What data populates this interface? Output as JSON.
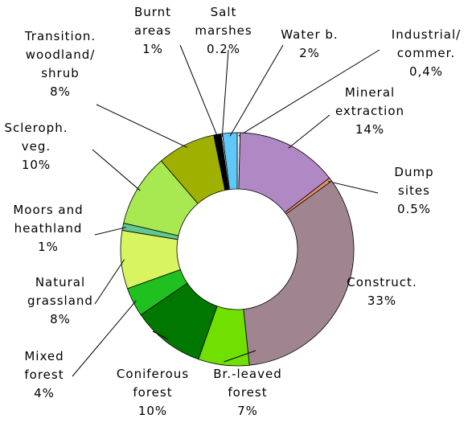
{
  "chart_data": {
    "type": "donut",
    "categories": [
      "Industrial/\ncommer.",
      "Mineral\nextraction",
      "Dump\nsites",
      "Construct.",
      "Br.-leaved\nforest",
      "Coniferous\nforest",
      "Mixed\nforest",
      "Natural\ngrassland",
      "Moors and\nheathland",
      "Scleroph.\nveg.",
      "Transition.\nwoodland/\nshrub",
      "Burnt\nareas",
      "Salt\nmarshes",
      "Water b."
    ],
    "values": [
      0.4,
      14,
      0.5,
      33,
      7,
      10,
      4,
      8,
      1,
      10,
      8,
      1,
      0.2,
      2
    ],
    "value_labels": [
      "0,4%",
      "14%",
      "0.5%",
      "33%",
      "7%",
      "10%",
      "4%",
      "8%",
      "1%",
      "10%",
      "8%",
      "1%",
      "0.2%",
      "2%"
    ],
    "colors": [
      "#f2f2f2",
      "#b088c4",
      "#e89070",
      "#a08590",
      "#70e000",
      "#007800",
      "#20c020",
      "#d8f460",
      "#60c890",
      "#a8e850",
      "#a0b000",
      "#000000",
      "#f2f2f2",
      "#60c8f8"
    ]
  }
}
